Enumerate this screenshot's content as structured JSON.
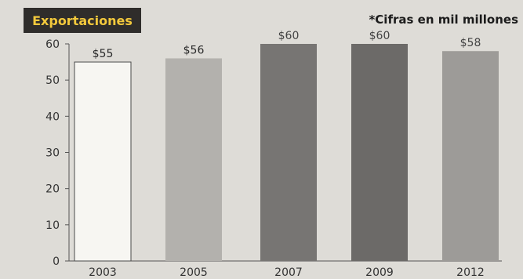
{
  "chart_data": {
    "type": "bar",
    "title": "Exportaciones",
    "note": "*Cifras en mil millones",
    "categories": [
      "2003",
      "2005",
      "2007",
      "2009",
      "2012"
    ],
    "values": [
      55,
      56,
      60,
      60,
      58
    ],
    "data_labels": [
      "$55",
      "$56",
      "$60",
      "$60",
      "$58"
    ],
    "bar_colors": [
      "#f7f6f2",
      "#b3b1ad",
      "#777573",
      "#6c6a68",
      "#9d9b98"
    ],
    "label_colors": [
      "#2b2b2b",
      "#2b2b2b",
      "#444444",
      "#444444",
      "#444444"
    ],
    "ylim": [
      0,
      60
    ],
    "yticks": [
      0,
      10,
      20,
      30,
      40,
      50,
      60
    ],
    "grid": false,
    "legend": "none"
  }
}
